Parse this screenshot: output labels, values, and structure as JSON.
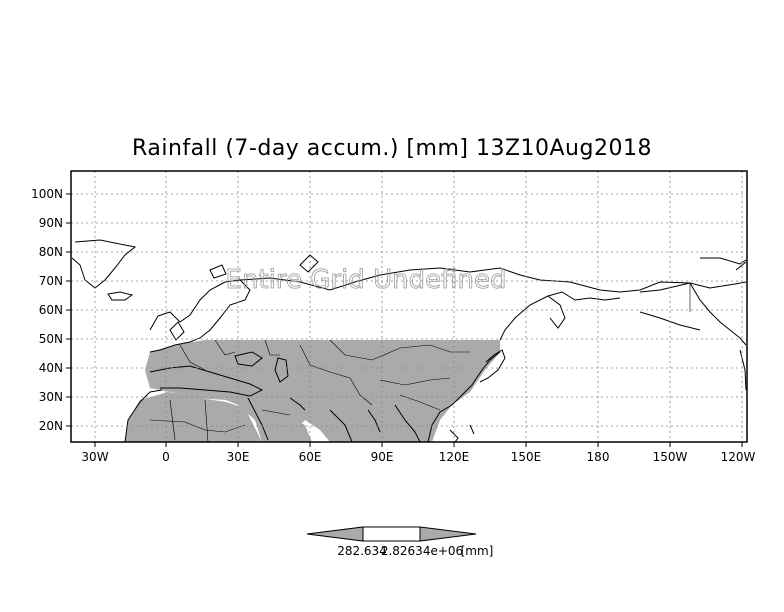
{
  "map": {
    "title": "Rainfall (7-day accum.) [mm] 13Z10Aug2018",
    "watermark": "Entire Grid Undefined",
    "lat_ticks": [
      "100N",
      "90N",
      "80N",
      "70N",
      "60N",
      "50N",
      "40N",
      "30N",
      "20N"
    ],
    "lon_ticks": [
      "30W",
      "0",
      "30E",
      "60E",
      "90E",
      "120E",
      "150E",
      "180",
      "150W",
      "120W"
    ],
    "land_color": "#aaaaaa",
    "grid": "dotted"
  },
  "colorbar": {
    "labels": [
      "282.634",
      "2.82634e+06",
      "[mm]"
    ],
    "low_color": "#aaaaaa",
    "mid_color": "#ffffff",
    "high_color": "#aaaaaa"
  }
}
